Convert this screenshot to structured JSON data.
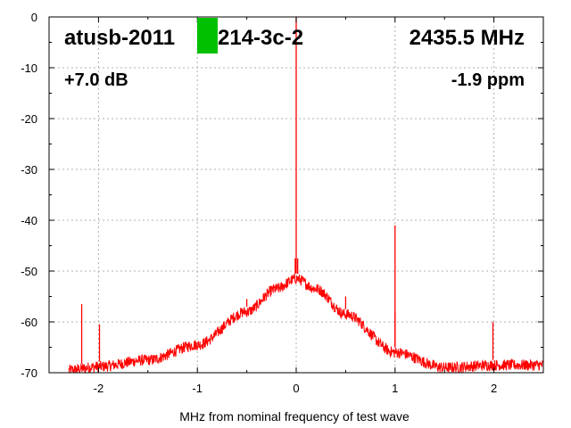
{
  "chart_data": {
    "type": "line",
    "title": "",
    "xlabel": "MHz from nominal frequency of test wave",
    "ylabel": "",
    "xlim": [
      -2.5,
      2.5
    ],
    "ylim": [
      -70,
      0
    ],
    "x_ticks": [
      -2,
      -1,
      0,
      1,
      2
    ],
    "x_tick_labels": [
      "-2",
      "-1",
      "0",
      "1",
      "2"
    ],
    "y_ticks": [
      0,
      -10,
      -20,
      -30,
      -40,
      -50,
      -60,
      -70
    ],
    "y_tick_labels": [
      "0",
      "-10",
      "-20",
      "-30",
      "-40",
      "-50",
      "-60",
      "-70"
    ],
    "grid": true,
    "series_color": "#ff0000",
    "noise_floor": {
      "x": [
        -2.3,
        -2.0,
        -1.5,
        -1.0,
        -0.5,
        -0.2,
        0.0,
        0.2,
        0.5,
        1.0,
        1.5,
        2.0,
        2.5
      ],
      "y": [
        -69.5,
        -68.8,
        -67.5,
        -64.5,
        -58.0,
        -53.5,
        -51.5,
        -53.5,
        -58.5,
        -66.0,
        -69.0,
        -68.5,
        -68.5
      ]
    },
    "spurs": [
      {
        "x": -2.17,
        "y": -56.5
      },
      {
        "x": -1.99,
        "y": -60.5
      },
      {
        "x": -0.5,
        "y": -55.5
      },
      {
        "x": -0.01,
        "y": -47.5
      },
      {
        "x": 0.0,
        "y": 0
      },
      {
        "x": 0.015,
        "y": -47.5
      },
      {
        "x": 0.5,
        "y": -55.0
      },
      {
        "x": 1.0,
        "y": -41.0
      },
      {
        "x": 1.0,
        "y": -58.0
      },
      {
        "x": 1.99,
        "y": -60.0
      }
    ],
    "annotations": {
      "device_id": "atusb-2011",
      "device_id_suffix": "214-3c-2",
      "frequency": "2435.5 MHz",
      "gain": "+7.0 dB",
      "ppm": "-1.9 ppm"
    },
    "marker_color": "#00c000"
  }
}
